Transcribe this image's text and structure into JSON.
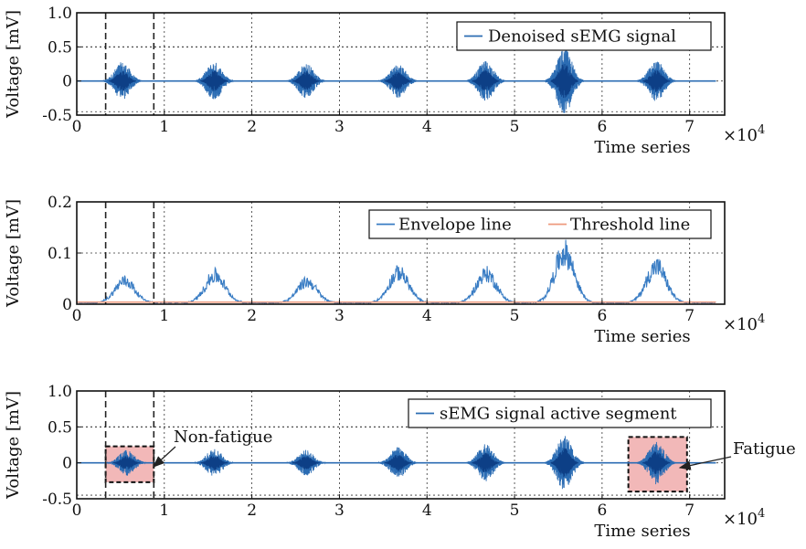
{
  "chart_data": [
    {
      "type": "line",
      "panel": "top",
      "xlabel": "Time series",
      "ylabel": "Voltage [mV]",
      "x_multiplier_label": "×10",
      "x_multiplier_exp": "4",
      "xlim": [
        0,
        7.4
      ],
      "ylim": [
        -0.5,
        1.0
      ],
      "xticks": [
        0,
        1,
        2,
        3,
        4,
        5,
        6,
        7
      ],
      "yticks": [
        -0.5,
        0,
        0.5,
        1.0
      ],
      "ytick_labels": [
        "-0.5",
        "0",
        "0.5",
        "1.0"
      ],
      "xtick_labels": [
        "0",
        "1",
        "2",
        "3",
        "4",
        "5",
        "6",
        "7"
      ],
      "grid": true,
      "legend_position": "top-right",
      "series": [
        {
          "name": "Denoised sEMG signal",
          "color": "#2b6cb3",
          "bursts": [
            {
              "center": 0.52,
              "amplitude": 0.28
            },
            {
              "center": 1.57,
              "amplitude": 0.28
            },
            {
              "center": 2.62,
              "amplitude": 0.26
            },
            {
              "center": 3.67,
              "amplitude": 0.25
            },
            {
              "center": 4.67,
              "amplitude": 0.3
            },
            {
              "center": 5.57,
              "amplitude": 0.48
            },
            {
              "center": 6.62,
              "amplitude": 0.3
            }
          ]
        }
      ],
      "vlines": [
        0.33,
        0.88
      ],
      "hlines": [
        -0.45,
        0.5
      ]
    },
    {
      "type": "line",
      "panel": "middle",
      "xlabel": "Time series",
      "ylabel": "Voltage [mV]",
      "x_multiplier_label": "×10",
      "x_multiplier_exp": "4",
      "xlim": [
        0,
        7.4
      ],
      "ylim": [
        0,
        0.2
      ],
      "xticks": [
        0,
        1,
        2,
        3,
        4,
        5,
        6,
        7
      ],
      "yticks": [
        0,
        0.1,
        0.2
      ],
      "ytick_labels": [
        "0",
        "0.1",
        "0.2"
      ],
      "xtick_labels": [
        "0",
        "1",
        "2",
        "3",
        "4",
        "5",
        "6",
        "7"
      ],
      "grid": true,
      "legend_position": "top-right",
      "series": [
        {
          "name": "Envelope line",
          "color": "#3a7dc4",
          "bursts": [
            {
              "center": 0.55,
              "amplitude": 0.055
            },
            {
              "center": 1.58,
              "amplitude": 0.068
            },
            {
              "center": 2.63,
              "amplitude": 0.052
            },
            {
              "center": 3.68,
              "amplitude": 0.075
            },
            {
              "center": 4.68,
              "amplitude": 0.072
            },
            {
              "center": 5.57,
              "amplitude": 0.125
            },
            {
              "center": 6.62,
              "amplitude": 0.09
            }
          ]
        },
        {
          "name": "Threshold line",
          "color": "#ee9a7e",
          "value": 0.004
        }
      ],
      "vlines": [
        0.33,
        0.88
      ]
    },
    {
      "type": "line",
      "panel": "bottom",
      "xlabel": "Time series",
      "ylabel": "Voltage [mV]",
      "x_multiplier_label": "×10",
      "x_multiplier_exp": "4",
      "xlim": [
        0,
        7.4
      ],
      "ylim": [
        -0.5,
        1.0
      ],
      "xticks": [
        0,
        1,
        2,
        3,
        4,
        5,
        6,
        7
      ],
      "yticks": [
        -0.5,
        0,
        0.5,
        1.0
      ],
      "ytick_labels": [
        "-0.5",
        "0",
        "0.5",
        "1.0"
      ],
      "xtick_labels": [
        "0",
        "1",
        "2",
        "3",
        "4",
        "5",
        "6",
        "7"
      ],
      "grid": true,
      "legend_position": "top-right",
      "series": [
        {
          "name": "sEMG signal active segment",
          "color": "#2b6cb3",
          "bursts": [
            {
              "center": 0.57,
              "amplitude": 0.18
            },
            {
              "center": 1.57,
              "amplitude": 0.2
            },
            {
              "center": 2.62,
              "amplitude": 0.18
            },
            {
              "center": 3.67,
              "amplitude": 0.22
            },
            {
              "center": 4.67,
              "amplitude": 0.26
            },
            {
              "center": 5.57,
              "amplitude": 0.38
            },
            {
              "center": 6.62,
              "amplitude": 0.3
            }
          ]
        }
      ],
      "vlines": [
        0.33,
        0.88
      ],
      "hlines": [
        -0.45,
        0.5
      ],
      "annotations": [
        {
          "text": "Non-fatigue",
          "x_range": [
            0.33,
            0.88
          ],
          "y_range": [
            -0.27,
            0.23
          ],
          "fill": "#f2b8b8"
        },
        {
          "text": "Fatigue",
          "x_range": [
            6.3,
            6.97
          ],
          "y_range": [
            -0.4,
            0.36
          ],
          "fill": "#f2b8b8"
        }
      ]
    }
  ]
}
